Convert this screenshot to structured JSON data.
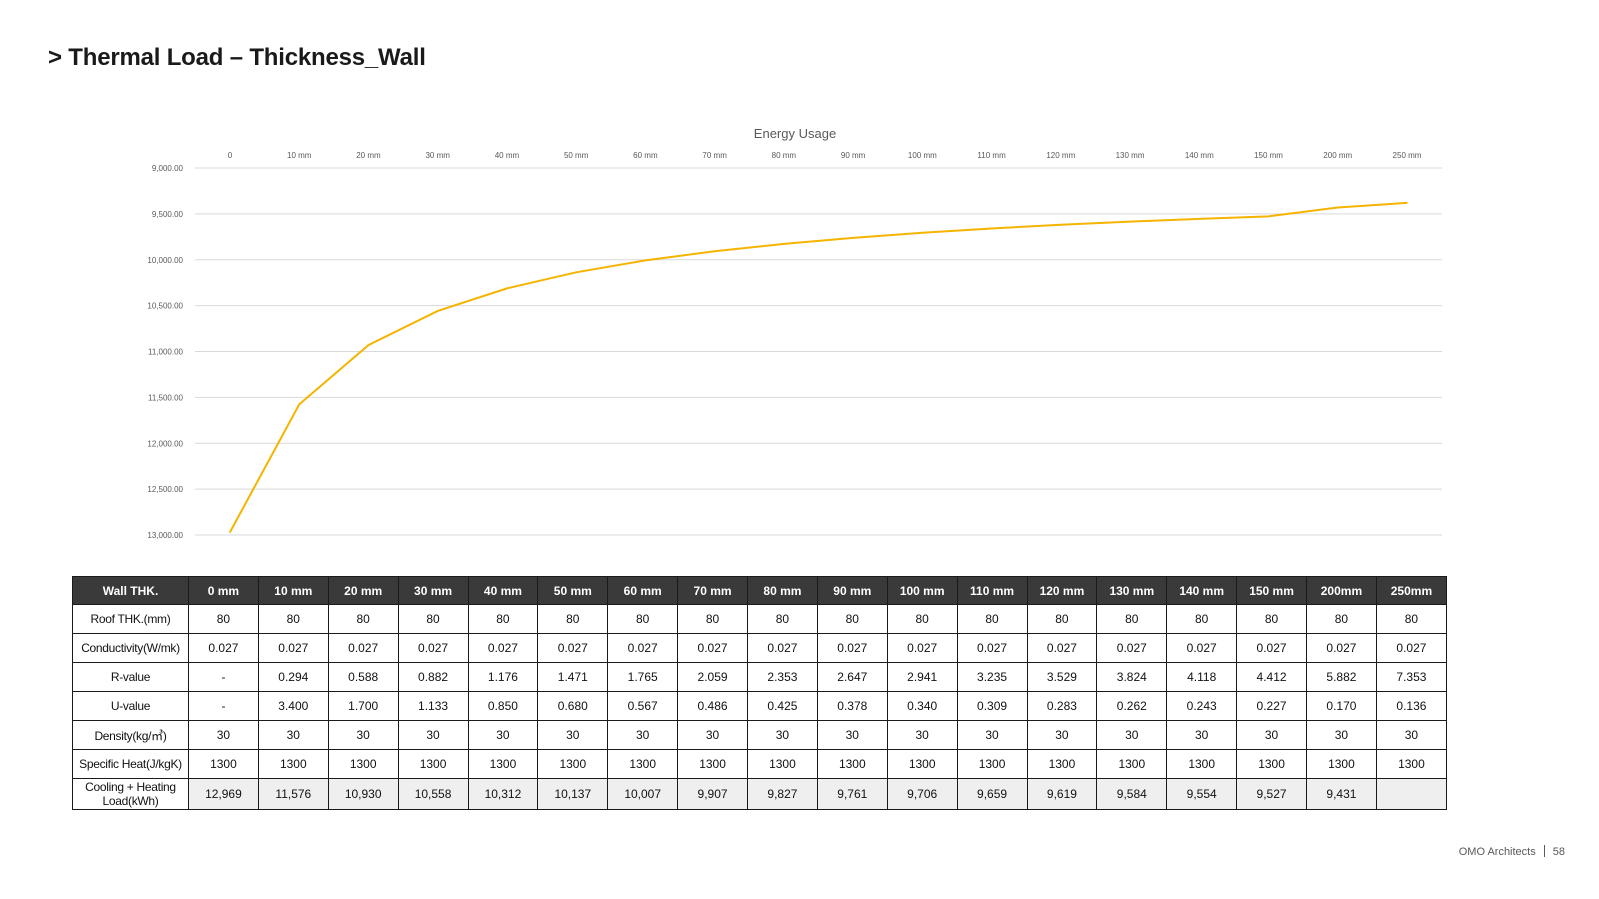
{
  "page": {
    "title": "> Thermal Load – Thickness_Wall",
    "footer_company": "OMO Architects",
    "page_number": "58"
  },
  "chart_data": {
    "type": "line",
    "title": "Energy Usage",
    "categories": [
      "0",
      "10 mm",
      "20 mm",
      "30 mm",
      "40 mm",
      "50 mm",
      "60 mm",
      "70 mm",
      "80 mm",
      "90 mm",
      "100 mm",
      "110 mm",
      "120 mm",
      "130 mm",
      "140 mm",
      "150 mm",
      "200 mm",
      "250 mm"
    ],
    "values": [
      12969,
      11576,
      10930,
      10558,
      10312,
      10137,
      10007,
      9907,
      9827,
      9761,
      9706,
      9659,
      9619,
      9584,
      9554,
      9527,
      9431,
      9380
    ],
    "y_ticks": [
      "9,000.00",
      "9,500.00",
      "10,000.00",
      "10,500.00",
      "11,000.00",
      "11,500.00",
      "12,000.00",
      "12,500.00",
      "13,000.00"
    ],
    "ylim": [
      9000,
      13000
    ],
    "y_reversed": true,
    "x_axis_position": "top",
    "grid": true,
    "color": "#f5b400"
  },
  "table": {
    "header_label": "Wall THK.",
    "columns": [
      "0 mm",
      "10 mm",
      "20 mm",
      "30 mm",
      "40 mm",
      "50 mm",
      "60 mm",
      "70 mm",
      "80 mm",
      "90 mm",
      "100 mm",
      "110 mm",
      "120 mm",
      "130 mm",
      "140 mm",
      "150 mm",
      "200mm",
      "250mm"
    ],
    "rows": [
      {
        "label": "Roof THK.(mm)",
        "values": [
          "80",
          "80",
          "80",
          "80",
          "80",
          "80",
          "80",
          "80",
          "80",
          "80",
          "80",
          "80",
          "80",
          "80",
          "80",
          "80",
          "80",
          "80"
        ]
      },
      {
        "label": "Conductivity(W/mk)",
        "values": [
          "0.027",
          "0.027",
          "0.027",
          "0.027",
          "0.027",
          "0.027",
          "0.027",
          "0.027",
          "0.027",
          "0.027",
          "0.027",
          "0.027",
          "0.027",
          "0.027",
          "0.027",
          "0.027",
          "0.027",
          "0.027"
        ]
      },
      {
        "label": "R-value",
        "values": [
          "-",
          "0.294",
          "0.588",
          "0.882",
          "1.176",
          "1.471",
          "1.765",
          "2.059",
          "2.353",
          "2.647",
          "2.941",
          "3.235",
          "3.529",
          "3.824",
          "4.118",
          "4.412",
          "5.882",
          "7.353"
        ]
      },
      {
        "label": "U-value",
        "values": [
          "-",
          "3.400",
          "1.700",
          "1.133",
          "0.850",
          "0.680",
          "0.567",
          "0.486",
          "0.425",
          "0.378",
          "0.340",
          "0.309",
          "0.283",
          "0.262",
          "0.243",
          "0.227",
          "0.170",
          "0.136"
        ]
      },
      {
        "label": "Density(kg/㎥)",
        "values": [
          "30",
          "30",
          "30",
          "30",
          "30",
          "30",
          "30",
          "30",
          "30",
          "30",
          "30",
          "30",
          "30",
          "30",
          "30",
          "30",
          "30",
          "30"
        ]
      },
      {
        "label": "Specific Heat(J/kgK)",
        "values": [
          "1300",
          "1300",
          "1300",
          "1300",
          "1300",
          "1300",
          "1300",
          "1300",
          "1300",
          "1300",
          "1300",
          "1300",
          "1300",
          "1300",
          "1300",
          "1300",
          "1300",
          "1300"
        ]
      },
      {
        "label": "Cooling + Heating Load(kWh)",
        "values": [
          "12,969",
          "11,576",
          "10,930",
          "10,558",
          "10,312",
          "10,137",
          "10,007",
          "9,907",
          "9,827",
          "9,761",
          "9,706",
          "9,659",
          "9,619",
          "9,584",
          "9,554",
          "9,527",
          "9,431",
          ""
        ]
      }
    ]
  }
}
